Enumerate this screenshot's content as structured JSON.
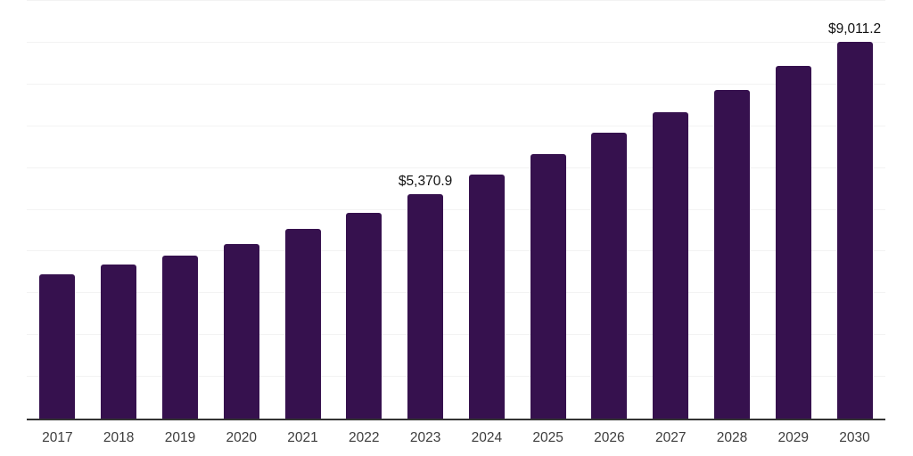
{
  "chart_data": {
    "type": "bar",
    "title": "",
    "xlabel": "",
    "ylabel": "",
    "categories": [
      "2017",
      "2018",
      "2019",
      "2020",
      "2021",
      "2022",
      "2023",
      "2024",
      "2025",
      "2026",
      "2027",
      "2028",
      "2029",
      "2030"
    ],
    "values": [
      3460,
      3690,
      3910,
      4180,
      4540,
      4925,
      5370.9,
      5845,
      6335,
      6845,
      7340,
      7870,
      8445,
      9011.2
    ],
    "data_labels": {
      "2023": "$5,370.9",
      "2030": "$9,011.2"
    },
    "ylim": [
      0,
      10000
    ],
    "gridline_interval": 1000,
    "grid": true,
    "legend": false,
    "legend_position": "none",
    "colors": {
      "bar": "#36114E",
      "background": "#ffffff",
      "gridline": "#f3f3f3",
      "axis_line": "#333333",
      "tick_label": "#3d3d3d",
      "data_label": "#111111"
    }
  }
}
